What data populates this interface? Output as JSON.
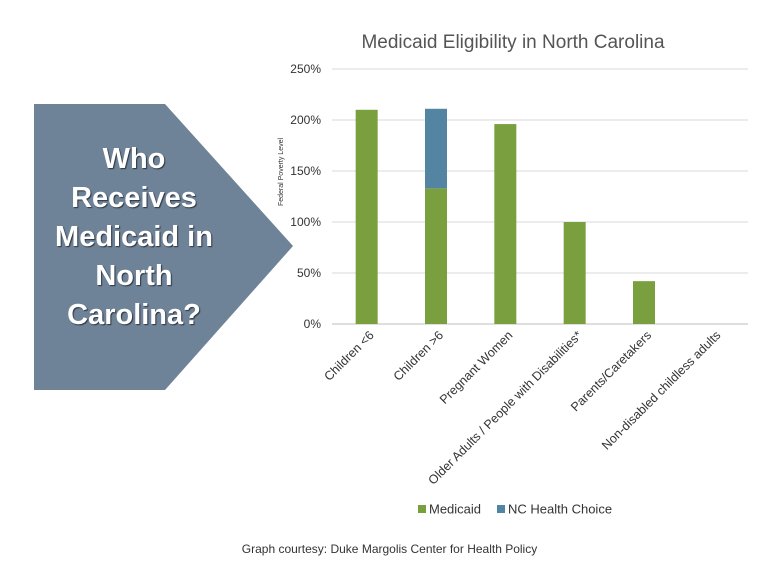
{
  "arrow": {
    "text_lines": [
      "Who",
      "Receives",
      "Medicaid in",
      "North",
      "Carolina?"
    ],
    "color": "#6e8298"
  },
  "caption": "Graph courtesy: Duke Margolis Center for Health Policy",
  "chart_data": {
    "type": "bar",
    "stacked": true,
    "title": "Medicaid Eligibility in North Carolina",
    "xlabel": "",
    "ylabel": "Federal Poverty Level",
    "ylim": [
      0,
      250
    ],
    "yticks": [
      0,
      50,
      100,
      150,
      200,
      250
    ],
    "ytick_labels": [
      "0%",
      "50%",
      "100%",
      "150%",
      "200%",
      "250%"
    ],
    "categories": [
      "Children <6",
      "Children >6",
      "Pregnant Women",
      "Older Adults / People with Disabilities*",
      "Parents/Caretakers",
      "Non-disabled childless adults"
    ],
    "series": [
      {
        "name": "Medicaid",
        "color": "#7a9f3e",
        "values": [
          210,
          133,
          196,
          100,
          42,
          0
        ]
      },
      {
        "name": "NC Health Choice",
        "color": "#5385a3",
        "values": [
          0,
          78,
          0,
          0,
          0,
          0
        ]
      }
    ],
    "grid": true,
    "legend": "bottom"
  }
}
